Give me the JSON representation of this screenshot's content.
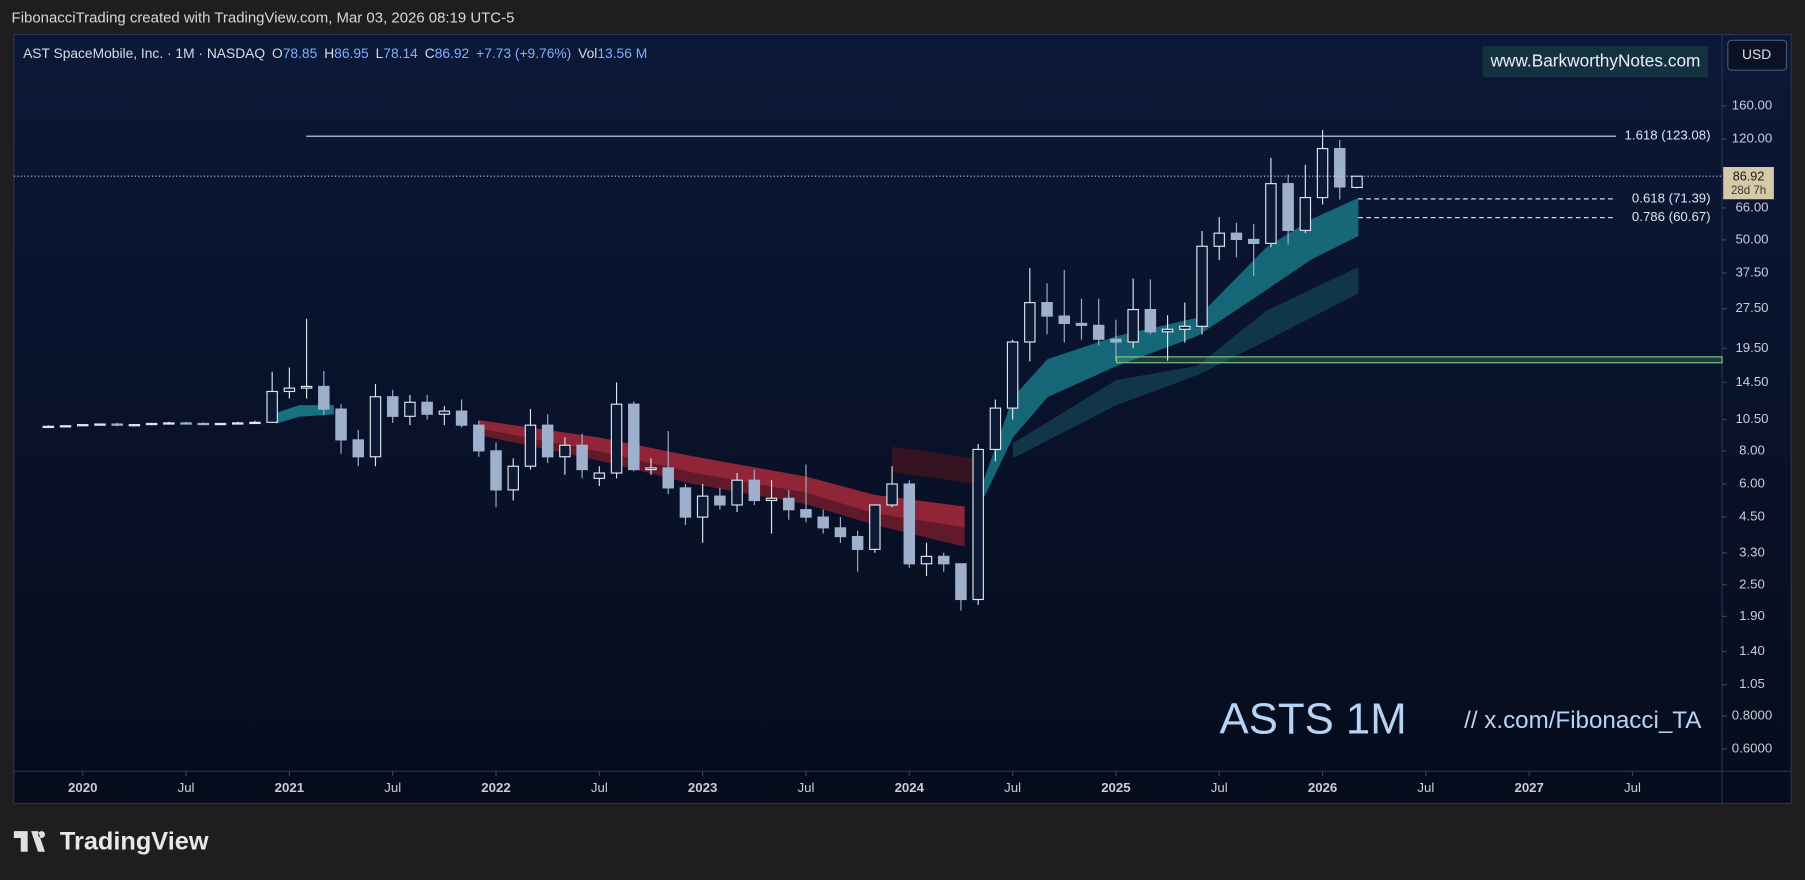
{
  "header": {
    "credit": "FibonacciTrading created with TradingView.com, Mar 03, 2026 08:19 UTC-5"
  },
  "chart_data": {
    "type": "candlestick",
    "symbol": "AST SpaceMobile, Inc. · 1M · NASDAQ",
    "legend": {
      "open_label": "O",
      "high_label": "H",
      "low_label": "L",
      "close_label": "C",
      "change": "+7.73 (+9.76%)",
      "volume_label": "Vol",
      "volume": "13.56 M"
    },
    "currency": "USD",
    "watermark": "www.BarkworthyNotes.com",
    "annotation": "ASTS 1M",
    "annotation_link": "// x.com/Fibonacci_TA",
    "countdown": "28d 7h",
    "x": [
      "2019-11",
      "2019-12",
      "2020-01",
      "2020-02",
      "2020-03",
      "2020-04",
      "2020-05",
      "2020-06",
      "2020-07",
      "2020-08",
      "2020-09",
      "2020-10",
      "2020-11",
      "2020-12",
      "2021-01",
      "2021-02",
      "2021-03",
      "2021-04",
      "2021-05",
      "2021-06",
      "2021-07",
      "2021-08",
      "2021-09",
      "2021-10",
      "2021-11",
      "2021-12",
      "2022-01",
      "2022-02",
      "2022-03",
      "2022-04",
      "2022-05",
      "2022-06",
      "2022-07",
      "2022-08",
      "2022-09",
      "2022-10",
      "2022-11",
      "2022-12",
      "2023-01",
      "2023-02",
      "2023-03",
      "2023-04",
      "2023-05",
      "2023-06",
      "2023-07",
      "2023-08",
      "2023-09",
      "2023-10",
      "2023-11",
      "2023-12",
      "2024-01",
      "2024-02",
      "2024-03",
      "2024-04",
      "2024-05",
      "2024-06",
      "2024-07",
      "2024-08",
      "2024-09",
      "2024-10",
      "2024-11",
      "2024-12",
      "2025-01",
      "2025-02",
      "2025-03",
      "2025-04",
      "2025-05",
      "2025-06",
      "2025-07",
      "2025-08",
      "2025-09",
      "2025-10",
      "2025-11",
      "2025-12",
      "2026-01",
      "2026-02",
      "2026-03"
    ],
    "open": [
      9.9,
      9.9,
      9.95,
      10.05,
      10.1,
      10.0,
      10.05,
      10.15,
      10.2,
      10.15,
      10.1,
      10.15,
      10.2,
      10.25,
      13.4,
      13.8,
      14.0,
      11.5,
      8.8,
      7.6,
      12.8,
      10.8,
      12.2,
      11.0,
      11.3,
      10.0,
      8.0,
      5.7,
      7.0,
      10.0,
      7.6,
      8.4,
      6.3,
      6.6,
      12.0,
      6.8,
      6.9,
      5.8,
      4.5,
      5.4,
      5.0,
      6.2,
      5.2,
      5.3,
      4.8,
      4.5,
      4.1,
      3.8,
      3.4,
      5.0,
      6.0,
      3.0,
      3.2,
      3.0,
      2.2,
      8.1,
      11.6,
      20.6,
      29.0,
      25.8,
      24.2,
      23.8,
      21.1,
      20.6,
      27.3,
      22.5,
      23.0,
      23.6,
      47.3,
      53.0,
      50.2,
      48.5,
      81.5,
      54.3,
      72.2,
      110.5,
      78.85
    ],
    "high": [
      10.0,
      10.0,
      10.1,
      10.15,
      10.2,
      10.1,
      10.2,
      10.3,
      10.3,
      10.25,
      10.2,
      10.3,
      10.4,
      15.9,
      16.5,
      25.2,
      16.0,
      12.0,
      9.6,
      14.3,
      13.6,
      13.0,
      13.0,
      11.8,
      12.5,
      10.4,
      8.6,
      7.5,
      11.5,
      11.0,
      9.0,
      9.3,
      7.0,
      14.5,
      12.3,
      7.5,
      9.5,
      6.0,
      6.0,
      5.8,
      6.6,
      6.8,
      6.2,
      5.7,
      7.1,
      4.8,
      4.5,
      4.0,
      5.0,
      7.0,
      6.2,
      3.6,
      3.3,
      3.0,
      8.5,
      12.5,
      21.0,
      39.1,
      34.3,
      38.5,
      30.0,
      30.0,
      25.0,
      35.7,
      35.5,
      26.0,
      29.0,
      54.0,
      60.9,
      58.0,
      57.5,
      102,
      88,
      96,
      129.9,
      119,
      86.95
    ],
    "low": [
      9.8,
      9.85,
      9.9,
      9.95,
      9.9,
      9.9,
      10.0,
      10.05,
      10.1,
      10.05,
      10.0,
      10.05,
      10.1,
      10.2,
      12.6,
      12.6,
      10.9,
      7.8,
      7.0,
      7.0,
      10.2,
      10.0,
      10.5,
      10.0,
      9.8,
      7.6,
      4.9,
      5.2,
      6.8,
      7.2,
      6.5,
      6.3,
      5.9,
      6.3,
      6.7,
      6.5,
      5.5,
      4.2,
      3.6,
      4.8,
      4.7,
      5.0,
      3.9,
      4.4,
      4.3,
      3.9,
      3.6,
      2.8,
      3.3,
      4.9,
      2.9,
      2.7,
      2.8,
      2.0,
      2.1,
      7.3,
      10.5,
      17.4,
      22.0,
      20.5,
      21.0,
      20.0,
      17.5,
      19.5,
      22.0,
      17.5,
      20.5,
      22.0,
      42.0,
      43.0,
      36.5,
      47.0,
      48,
      53,
      68,
      71,
      78.14
    ],
    "close": [
      9.9,
      9.95,
      10.05,
      10.1,
      10.0,
      10.05,
      10.15,
      10.2,
      10.15,
      10.1,
      10.15,
      10.2,
      10.25,
      13.4,
      13.8,
      14.0,
      11.5,
      8.8,
      7.6,
      12.8,
      10.8,
      12.2,
      11.0,
      11.3,
      10.0,
      8.0,
      5.7,
      7.0,
      10.0,
      7.6,
      8.4,
      6.8,
      6.6,
      12.0,
      6.8,
      6.9,
      5.8,
      4.5,
      5.4,
      5.0,
      6.2,
      5.2,
      5.3,
      4.8,
      4.5,
      4.1,
      3.8,
      3.4,
      5.0,
      6.0,
      3.0,
      3.2,
      3.0,
      2.2,
      8.1,
      11.6,
      20.6,
      29.0,
      25.8,
      24.2,
      23.8,
      21.1,
      20.6,
      27.3,
      22.5,
      23.0,
      23.6,
      47.3,
      53.0,
      50.2,
      48.5,
      81.5,
      54.3,
      72.2,
      110.5,
      79.19,
      86.92
    ],
    "up_color": "#dfe5ef",
    "down_color": "#9fb0cc",
    "log_scale": true,
    "xlim": [
      "2019-09",
      "2027-12"
    ],
    "ylim": [
      0.495,
      297.6
    ],
    "yticks": [
      {
        "value": 160,
        "label": "160.00"
      },
      {
        "value": 120,
        "label": "120.00"
      },
      {
        "value": 66,
        "label": "66.00"
      },
      {
        "value": 50,
        "label": "50.00"
      },
      {
        "value": 37.5,
        "label": "37.50"
      },
      {
        "value": 27.5,
        "label": "27.50"
      },
      {
        "value": 19.5,
        "label": "19.50"
      },
      {
        "value": 14.5,
        "label": "14.50"
      },
      {
        "value": 10.5,
        "label": "10.50"
      },
      {
        "value": 8,
        "label": "8.00"
      },
      {
        "value": 6,
        "label": "6.00"
      },
      {
        "value": 4.5,
        "label": "4.50"
      },
      {
        "value": 3.3,
        "label": "3.30"
      },
      {
        "value": 2.5,
        "label": "2.50"
      },
      {
        "value": 1.9,
        "label": "1.90"
      },
      {
        "value": 1.4,
        "label": "1.40"
      },
      {
        "value": 1.05,
        "label": "1.05"
      },
      {
        "value": 0.8,
        "label": "0.8000"
      },
      {
        "value": 0.6,
        "label": "0.6000"
      }
    ],
    "xticks": [
      {
        "value": "2020-01",
        "label": "2020"
      },
      {
        "value": "2020-07",
        "label": "Jul"
      },
      {
        "value": "2021-01",
        "label": "2021"
      },
      {
        "value": "2021-07",
        "label": "Jul"
      },
      {
        "value": "2022-01",
        "label": "2022"
      },
      {
        "value": "2022-07",
        "label": "Jul"
      },
      {
        "value": "2023-01",
        "label": "2023"
      },
      {
        "value": "2023-07",
        "label": "Jul"
      },
      {
        "value": "2024-01",
        "label": "2024"
      },
      {
        "value": "2024-07",
        "label": "Jul"
      },
      {
        "value": "2025-01",
        "label": "2025"
      },
      {
        "value": "2025-07",
        "label": "Jul"
      },
      {
        "value": "2026-01",
        "label": "2026"
      },
      {
        "value": "2026-07",
        "label": "Jul"
      },
      {
        "value": "2027-01",
        "label": "2027"
      },
      {
        "value": "2027-07",
        "label": "Jul"
      }
    ],
    "fib_levels": [
      {
        "label": "1.618 (123.08)",
        "value": 123.08,
        "line_style": "solid"
      },
      {
        "label": "0.618 (71.39)",
        "value": 71.39,
        "line_style": "dashed"
      },
      {
        "label": "0.786 (60.67)",
        "value": 60.67,
        "line_style": "dashed"
      }
    ],
    "zone": [
      17.2,
      18.1
    ]
  },
  "footer": {
    "brand": "TradingView"
  }
}
